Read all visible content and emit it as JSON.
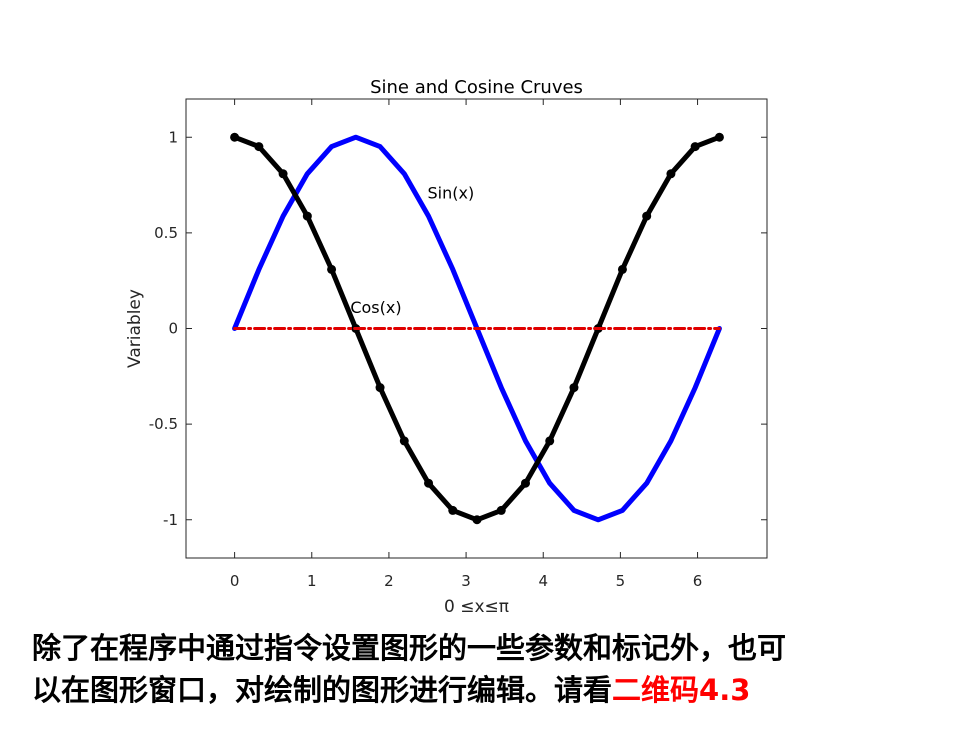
{
  "chart_data": {
    "type": "line",
    "title": "Sine and Cosine Cruves",
    "xlabel": "0 ≤x≤π",
    "ylabel": "Variabley",
    "xlim": [
      -0.63,
      6.9
    ],
    "ylim": [
      -1.2,
      1.2
    ],
    "xticks": [
      0,
      1,
      2,
      3,
      4,
      5,
      6
    ],
    "yticks": [
      -1,
      -0.5,
      0,
      0.5,
      1
    ],
    "ytick_labels": [
      "-1",
      "-0.5",
      "0",
      "0.5",
      "1"
    ],
    "grid": false,
    "x": [
      0,
      0.3142,
      0.6283,
      0.9425,
      1.2566,
      1.5708,
      1.885,
      2.1991,
      2.5133,
      2.8274,
      3.1416,
      3.4558,
      3.7699,
      4.0841,
      4.3982,
      4.7124,
      5.0265,
      5.3407,
      5.6549,
      5.969,
      6.2832
    ],
    "series": [
      {
        "values": [
          0,
          0.309,
          0.5878,
          0.809,
          0.9511,
          1,
          0.9511,
          0.809,
          0.5878,
          0.309,
          0,
          -0.309,
          -0.5878,
          -0.809,
          -0.9511,
          -1,
          -0.9511,
          -0.809,
          -0.5878,
          -0.309,
          0
        ],
        "color": "#0000ff",
        "style": "solid"
      },
      {
        "values": [
          1,
          0.9511,
          0.809,
          0.5878,
          0.309,
          0,
          -0.309,
          -0.5878,
          -0.809,
          -0.9511,
          -1,
          -0.9511,
          -0.809,
          -0.5878,
          -0.309,
          0,
          0.309,
          0.5878,
          0.809,
          0.9511,
          1
        ],
        "color": "#000000",
        "style": "solid",
        "markers": true
      },
      {
        "values": [
          0,
          0,
          0,
          0,
          0,
          0,
          0,
          0,
          0,
          0,
          0,
          0,
          0,
          0,
          0,
          0,
          0,
          0,
          0,
          0,
          0
        ],
        "color": "#e00000",
        "style": "dash-dot"
      }
    ],
    "annotations": [
      {
        "text": "Sin(x)",
        "x": 2.5,
        "y": 0.68
      },
      {
        "text": "Cos(x)",
        "x": 1.5,
        "y": 0.08
      }
    ]
  },
  "caption": {
    "line1": "除了在程序中通过指令设置图形的一些参数和标记外，也可",
    "line2_prefix": "以在图形窗口，对绘制的图形进行编辑。请看",
    "line2_highlight": "二维码4.3"
  }
}
